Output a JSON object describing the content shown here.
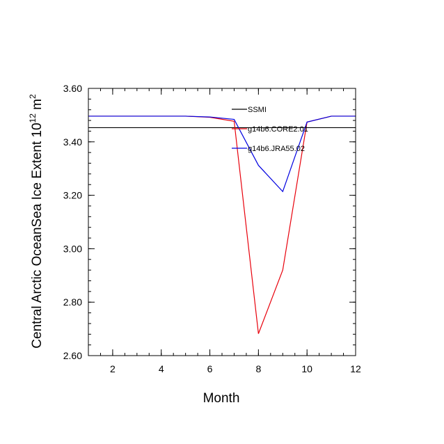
{
  "chart_data": {
    "type": "line",
    "xlabel": "Month",
    "ylabel": "Central Arctic OceanSea Ice Extent 10",
    "ylabel_sup": "12",
    "ylabel_unit": " m",
    "ylabel_unit_sup": "2",
    "xlim": [
      1,
      12
    ],
    "ylim": [
      2.6,
      3.6
    ],
    "x_ticks": [
      2,
      4,
      6,
      8,
      10,
      12
    ],
    "x_tick_labels": [
      "2",
      "4",
      "6",
      "8",
      "10",
      "12"
    ],
    "y_ticks": [
      2.6,
      2.8,
      3.0,
      3.2,
      3.4,
      3.6
    ],
    "y_tick_labels": [
      "2.60",
      "2.80",
      "3.00",
      "3.20",
      "3.40",
      "3.60"
    ],
    "legend_position": "top-right",
    "x": [
      1,
      2,
      3,
      4,
      5,
      6,
      7,
      8,
      9,
      10,
      11,
      12
    ],
    "series": [
      {
        "name": "SSMI",
        "color": "#000000",
        "values": [
          3.453,
          3.453,
          3.453,
          3.453,
          3.453,
          3.453,
          3.453,
          3.453,
          3.453,
          3.453,
          3.453,
          3.453
        ]
      },
      {
        "name": "g14b6.CORE2.01",
        "color": "#e8000b",
        "values": [
          3.496,
          3.496,
          3.496,
          3.496,
          3.496,
          3.492,
          3.477,
          2.682,
          2.92,
          3.474,
          3.496,
          3.496
        ]
      },
      {
        "name": "g14b6.JRA55.02",
        "color": "#0000e0",
        "values": [
          3.496,
          3.496,
          3.496,
          3.496,
          3.496,
          3.493,
          3.484,
          3.312,
          3.214,
          3.474,
          3.496,
          3.496
        ]
      }
    ]
  }
}
